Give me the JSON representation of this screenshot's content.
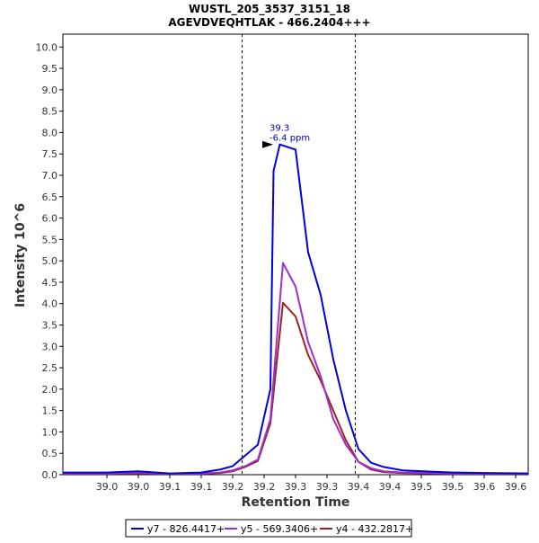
{
  "chart_data": {
    "type": "line",
    "title": "WUSTL_205_3537_3151_18",
    "subtitle": "AGEVDVEQHTLAK - 466.2404+++",
    "xlabel": "Retention Time",
    "ylabel": "Intensity 10^6",
    "xlim": [
      38.93,
      39.67
    ],
    "ylim": [
      0,
      10.3
    ],
    "x_ticks": [
      "39.0",
      "39.0",
      "39.1",
      "39.1",
      "39.2",
      "39.2",
      "39.3",
      "39.3",
      "39.4",
      "39.4",
      "39.5",
      "39.5",
      "39.6",
      "39.6"
    ],
    "y_ticks": [
      "0.0",
      "0.5",
      "1.0",
      "1.5",
      "2.0",
      "2.5",
      "3.0",
      "3.5",
      "4.0",
      "4.5",
      "5.0",
      "5.5",
      "6.0",
      "6.5",
      "7.0",
      "7.5",
      "8.0",
      "8.5",
      "9.0",
      "9.5",
      "10.0"
    ],
    "grid": false,
    "legend_position": "bottom",
    "peak_boundaries": [
      39.215,
      39.395
    ],
    "annotation": {
      "x": 39.27,
      "y": 7.72,
      "line1": "39.3",
      "line2": "-6.4 ppm"
    },
    "series": [
      {
        "name": "y7 - 826.4417+",
        "color": "#0000e0",
        "x": [
          38.93,
          39.0,
          39.05,
          39.1,
          39.15,
          39.18,
          39.2,
          39.22,
          39.24,
          39.26,
          39.265,
          39.275,
          39.3,
          39.32,
          39.34,
          39.36,
          39.38,
          39.4,
          39.42,
          39.44,
          39.47,
          39.52,
          39.55,
          39.6,
          39.67
        ],
        "y": [
          0.05,
          0.05,
          0.08,
          0.03,
          0.05,
          0.12,
          0.2,
          0.45,
          0.7,
          2.0,
          7.1,
          7.72,
          7.6,
          5.2,
          4.2,
          2.7,
          1.5,
          0.6,
          0.28,
          0.18,
          0.1,
          0.07,
          0.05,
          0.04,
          0.03
        ]
      },
      {
        "name": "y5 - 569.3406+",
        "color": "#9b30d0",
        "x": [
          38.93,
          39.0,
          39.05,
          39.1,
          39.15,
          39.18,
          39.2,
          39.22,
          39.24,
          39.26,
          39.28,
          39.3,
          39.32,
          39.34,
          39.36,
          39.38,
          39.4,
          39.42,
          39.44,
          39.47,
          39.52,
          39.55,
          39.6,
          39.67
        ],
        "y": [
          0.03,
          0.03,
          0.05,
          0.02,
          0.03,
          0.05,
          0.1,
          0.2,
          0.35,
          1.3,
          4.95,
          4.4,
          3.1,
          2.3,
          1.3,
          0.7,
          0.3,
          0.15,
          0.08,
          0.05,
          0.04,
          0.03,
          0.03,
          0.02
        ]
      },
      {
        "name": "y4 - 432.2817+",
        "color": "#a02020",
        "x": [
          38.93,
          39.0,
          39.05,
          39.1,
          39.15,
          39.18,
          39.2,
          39.22,
          39.24,
          39.26,
          39.28,
          39.3,
          39.32,
          39.34,
          39.36,
          39.38,
          39.4,
          39.42,
          39.44,
          39.47,
          39.52,
          39.55,
          39.6,
          39.67
        ],
        "y": [
          0.02,
          0.02,
          0.03,
          0.02,
          0.02,
          0.04,
          0.08,
          0.18,
          0.32,
          1.2,
          4.02,
          3.7,
          2.8,
          2.2,
          1.5,
          0.8,
          0.3,
          0.12,
          0.06,
          0.04,
          0.03,
          0.02,
          0.02,
          0.02
        ]
      }
    ]
  }
}
